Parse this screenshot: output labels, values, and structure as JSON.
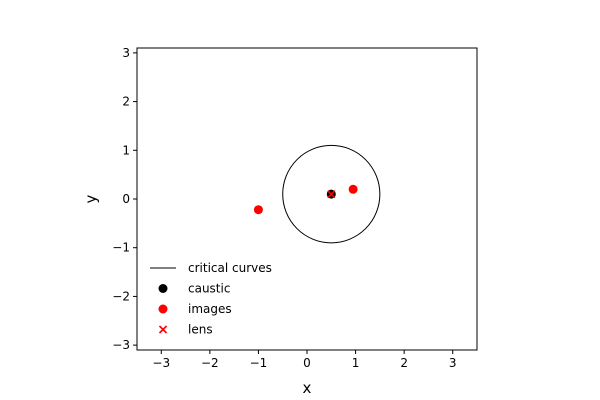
{
  "chart_data": {
    "type": "scatter",
    "xlabel": "x",
    "ylabel": "y",
    "xlim": [
      -3.5,
      3.5
    ],
    "ylim": [
      -3.1,
      3.1
    ],
    "xticks": [
      -3,
      -2,
      -1,
      0,
      1,
      2,
      3
    ],
    "yticks": [
      -3,
      -2,
      -1,
      0,
      1,
      2,
      3
    ],
    "xtick_labels": [
      "−3",
      "−2",
      "−1",
      "0",
      "1",
      "2",
      "3"
    ],
    "ytick_labels": [
      "−3",
      "−2",
      "−1",
      "0",
      "1",
      "2",
      "3"
    ],
    "grid": false,
    "legend_position": "lower-left",
    "critical_curve": {
      "center": [
        0.5,
        0.1
      ],
      "radius": 1.0,
      "color": "#000000"
    },
    "caustic": {
      "x": [
        0.5
      ],
      "y": [
        0.1
      ],
      "color": "#000000"
    },
    "images": {
      "x": [
        -1.0,
        0.95
      ],
      "y": [
        -0.22,
        0.2
      ],
      "color": "#ff0000"
    },
    "lens": {
      "x": [
        0.5
      ],
      "y": [
        0.1
      ],
      "color": "#ff0000",
      "marker": "x"
    },
    "legend": [
      {
        "label": "critical curves",
        "marker": "line",
        "color": "#000000"
      },
      {
        "label": "caustic",
        "marker": "circle",
        "color": "#000000"
      },
      {
        "label": "images",
        "marker": "circle",
        "color": "#ff0000"
      },
      {
        "label": "lens",
        "marker": "x",
        "color": "#ff0000"
      }
    ]
  }
}
